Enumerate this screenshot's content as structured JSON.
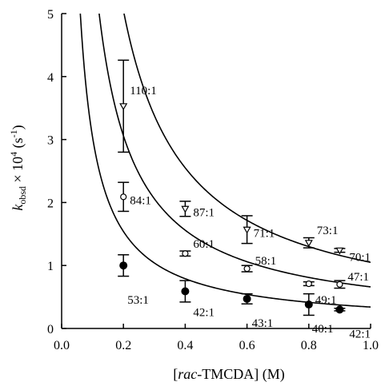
{
  "chart_data": {
    "type": "scatter",
    "xlabel_parts": [
      "[",
      "rac",
      "-TMCDA] (M)"
    ],
    "ylabel_parts": [
      "k",
      "obsd",
      " × 10",
      "4",
      " (s",
      "-1",
      ")"
    ],
    "xlim": [
      0.0,
      1.0
    ],
    "ylim": [
      0,
      5
    ],
    "x_ticks": [
      "0.0",
      "0.2",
      "0.4",
      "0.6",
      "0.8",
      "1.0"
    ],
    "y_ticks": [
      "0",
      "1",
      "2",
      "3",
      "4",
      "5"
    ],
    "grid": false,
    "legend": "none",
    "series": [
      {
        "marker": "open-triangle",
        "points": [
          {
            "x": 0.2,
            "y": 3.53,
            "err": 0.73,
            "label": "110:1"
          },
          {
            "x": 0.4,
            "y": 1.9,
            "err": 0.12,
            "label": "87:1"
          },
          {
            "x": 0.6,
            "y": 1.57,
            "err": 0.22,
            "label": "71:1"
          },
          {
            "x": 0.8,
            "y": 1.36,
            "err": 0.08,
            "label": "73:1"
          },
          {
            "x": 0.9,
            "y": 1.24,
            "err": 0.03,
            "label": "70:1"
          }
        ],
        "fit": {
          "a": 1.0,
          "b": 0.05
        }
      },
      {
        "marker": "open-circle",
        "points": [
          {
            "x": 0.2,
            "y": 2.09,
            "err": 0.23,
            "label": "84:1"
          },
          {
            "x": 0.4,
            "y": 1.19,
            "err": 0.04,
            "label": "60:1"
          },
          {
            "x": 0.6,
            "y": 0.95,
            "err": 0.05,
            "label": "58:1"
          },
          {
            "x": 0.8,
            "y": 0.71,
            "err": 0.03,
            "label": "49:1"
          },
          {
            "x": 0.9,
            "y": 0.7,
            "err": 0.06,
            "label": "47:1"
          }
        ],
        "fit": {
          "a": 0.6,
          "b": 0.06
        }
      },
      {
        "marker": "filled-circle",
        "points": [
          {
            "x": 0.2,
            "y": 1.0,
            "err": 0.17,
            "label": "53:1"
          },
          {
            "x": 0.4,
            "y": 0.59,
            "err": 0.17,
            "label": "42:1"
          },
          {
            "x": 0.6,
            "y": 0.47,
            "err": 0.08,
            "label": "43:1"
          },
          {
            "x": 0.8,
            "y": 0.38,
            "err": 0.17,
            "label": "40:1"
          },
          {
            "x": 0.9,
            "y": 0.3,
            "err": 0.02,
            "label": "42:1"
          }
        ],
        "fit": {
          "a": 0.3,
          "b": 0.04
        }
      }
    ]
  }
}
